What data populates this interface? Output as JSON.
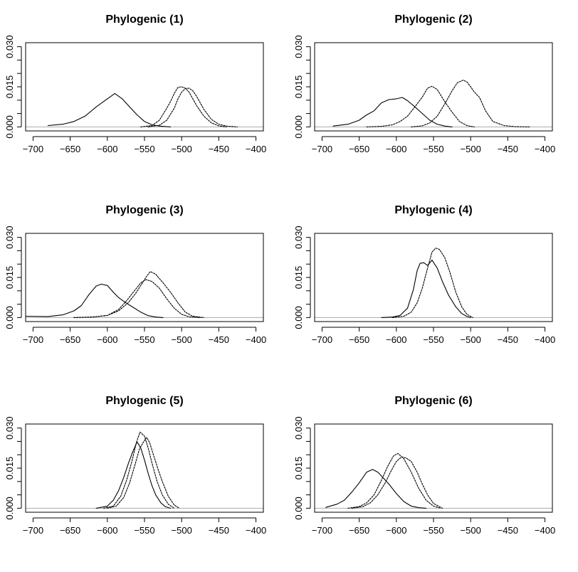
{
  "chart_data": [
    {
      "type": "line",
      "title": "Phylogenic (1)",
      "xlim": [
        -700,
        -400
      ],
      "ylim": [
        0,
        0.03
      ],
      "x_ticks": [
        "-700",
        "-650",
        "-600",
        "-550",
        "-500",
        "-450",
        "-400"
      ],
      "y_ticks": [
        "0.000",
        "0.015",
        "0.030"
      ],
      "y_minor_ticks": [
        0.005,
        0.01,
        0.02,
        0.025
      ],
      "series": [
        {
          "style": "solid",
          "x": [
            -680,
            -660,
            -645,
            -630,
            -615,
            -600,
            -590,
            -580,
            -570,
            -560,
            -550,
            -540,
            -530,
            -520,
            -515
          ],
          "y": [
            0.0005,
            0.001,
            0.002,
            0.004,
            0.0075,
            0.0105,
            0.0125,
            0.0105,
            0.0075,
            0.0045,
            0.002,
            0.0008,
            0.0003,
            0.0001,
            0.0
          ]
        },
        {
          "style": "dotted",
          "x": [
            -555,
            -540,
            -530,
            -520,
            -515,
            -510,
            -505,
            -500,
            -495,
            -490,
            -480,
            -470,
            -460,
            -450,
            -440
          ],
          "y": [
            0.0,
            0.0005,
            0.0025,
            0.007,
            0.0095,
            0.0125,
            0.0148,
            0.015,
            0.0145,
            0.013,
            0.008,
            0.004,
            0.0015,
            0.0004,
            0.0
          ]
        },
        {
          "style": "dotted",
          "x": [
            -545,
            -530,
            -520,
            -510,
            -505,
            -500,
            -495,
            -490,
            -485,
            -480,
            -470,
            -460,
            -450,
            -440,
            -425
          ],
          "y": [
            0.0,
            0.0006,
            0.0025,
            0.007,
            0.0105,
            0.013,
            0.0143,
            0.0145,
            0.0135,
            0.0115,
            0.0065,
            0.0028,
            0.001,
            0.0003,
            0.0
          ]
        }
      ]
    },
    {
      "type": "line",
      "title": "Phylogenic (2)",
      "xlim": [
        -700,
        -400
      ],
      "ylim": [
        0,
        0.03
      ],
      "x_ticks": [
        "-700",
        "-650",
        "-600",
        "-550",
        "-500",
        "-450",
        "-400"
      ],
      "y_ticks": [
        "0.000",
        "0.015",
        "0.030"
      ],
      "y_minor_ticks": [
        0.005,
        0.01,
        0.02,
        0.025
      ],
      "series": [
        {
          "style": "solid",
          "x": [
            -685,
            -665,
            -650,
            -640,
            -630,
            -620,
            -610,
            -600,
            -592,
            -585,
            -575,
            -565,
            -555,
            -545,
            -535,
            -525
          ],
          "y": [
            0.0003,
            0.001,
            0.0025,
            0.0045,
            0.006,
            0.009,
            0.0102,
            0.0105,
            0.011,
            0.0098,
            0.0075,
            0.005,
            0.0025,
            0.001,
            0.0003,
            0.0
          ]
        },
        {
          "style": "dotted",
          "x": [
            -640,
            -620,
            -605,
            -595,
            -585,
            -575,
            -565,
            -558,
            -552,
            -545,
            -535,
            -525,
            -515,
            -505,
            -495
          ],
          "y": [
            0.0,
            0.0002,
            0.0008,
            0.002,
            0.004,
            0.0075,
            0.0112,
            0.0145,
            0.0152,
            0.014,
            0.0095,
            0.0055,
            0.002,
            0.0005,
            0.0
          ]
        },
        {
          "style": "dotted",
          "x": [
            -580,
            -565,
            -555,
            -545,
            -535,
            -525,
            -518,
            -510,
            -505,
            -500,
            -495,
            -488,
            -480,
            -470,
            -455,
            -440,
            -420
          ],
          "y": [
            0.0,
            0.0004,
            0.0015,
            0.004,
            0.0085,
            0.0135,
            0.0165,
            0.0175,
            0.0168,
            0.015,
            0.013,
            0.011,
            0.006,
            0.002,
            0.0005,
            0.0001,
            0.0
          ]
        }
      ]
    },
    {
      "type": "line",
      "title": "Phylogenic (3)",
      "xlim": [
        -700,
        -400
      ],
      "ylim": [
        0,
        0.03
      ],
      "x_ticks": [
        "-700",
        "-650",
        "-600",
        "-550",
        "-500",
        "-450",
        "-400"
      ],
      "y_ticks": [
        "0.000",
        "0.015",
        "0.030"
      ],
      "y_minor_ticks": [
        0.005,
        0.01,
        0.02,
        0.025
      ],
      "series": [
        {
          "style": "solid",
          "x": [
            -710,
            -680,
            -660,
            -645,
            -635,
            -625,
            -615,
            -608,
            -600,
            -592,
            -585,
            -575,
            -565,
            -555,
            -545,
            -535,
            -525
          ],
          "y": [
            0.0005,
            0.0004,
            0.001,
            0.0025,
            0.0045,
            0.0085,
            0.0118,
            0.0125,
            0.012,
            0.0095,
            0.0075,
            0.0055,
            0.0038,
            0.002,
            0.0007,
            0.0002,
            0.0
          ]
        },
        {
          "style": "dotted",
          "x": [
            -645,
            -620,
            -600,
            -585,
            -575,
            -565,
            -555,
            -548,
            -540,
            -530,
            -520,
            -510,
            -500,
            -490,
            -475
          ],
          "y": [
            0.0,
            0.0002,
            0.0008,
            0.003,
            0.006,
            0.0095,
            0.013,
            0.0142,
            0.0135,
            0.011,
            0.007,
            0.0035,
            0.0012,
            0.0003,
            0.0
          ]
        },
        {
          "style": "dotted",
          "x": [
            -645,
            -620,
            -600,
            -585,
            -572,
            -562,
            -555,
            -547,
            -542,
            -535,
            -525,
            -515,
            -505,
            -495,
            -485,
            -470
          ],
          "y": [
            0.0,
            0.0002,
            0.0008,
            0.0025,
            0.0055,
            0.009,
            0.012,
            0.0155,
            0.0172,
            0.0162,
            0.013,
            0.0095,
            0.0055,
            0.002,
            0.0005,
            0.0
          ]
        }
      ]
    },
    {
      "type": "line",
      "title": "Phylogenic (4)",
      "xlim": [
        -700,
        -400
      ],
      "ylim": [
        0,
        0.03
      ],
      "x_ticks": [
        "-700",
        "-650",
        "-600",
        "-550",
        "-500",
        "-450",
        "-400"
      ],
      "y_ticks": [
        "0.000",
        "0.015",
        "0.030"
      ],
      "y_minor_ticks": [
        0.005,
        0.01,
        0.02,
        0.025
      ],
      "series": [
        {
          "style": "solid",
          "x": [
            -620,
            -605,
            -595,
            -585,
            -577,
            -572,
            -568,
            -563,
            -558,
            -552,
            -545,
            -538,
            -530,
            -520,
            -512,
            -505,
            -500
          ],
          "y": [
            0.0,
            0.0002,
            0.0008,
            0.0035,
            0.0105,
            0.0175,
            0.0203,
            0.0205,
            0.0195,
            0.0215,
            0.0185,
            0.0135,
            0.0085,
            0.004,
            0.0015,
            0.0004,
            0.0
          ]
        },
        {
          "style": "dotted",
          "x": [
            -605,
            -590,
            -580,
            -572,
            -565,
            -558,
            -552,
            -547,
            -542,
            -535,
            -528,
            -520,
            -512,
            -505,
            -497
          ],
          "y": [
            0.0,
            0.0005,
            0.002,
            0.0055,
            0.011,
            0.0185,
            0.0245,
            0.026,
            0.0255,
            0.0225,
            0.017,
            0.0095,
            0.004,
            0.0012,
            0.0
          ]
        }
      ]
    },
    {
      "type": "line",
      "title": "Phylogenic (5)",
      "xlim": [
        -700,
        -400
      ],
      "ylim": [
        0,
        0.03
      ],
      "x_ticks": [
        "-700",
        "-650",
        "-600",
        "-550",
        "-500",
        "-450",
        "-400"
      ],
      "y_ticks": [
        "0.000",
        "0.015",
        "0.030"
      ],
      "y_minor_ticks": [
        0.005,
        0.01,
        0.02,
        0.025
      ],
      "series": [
        {
          "style": "solid",
          "x": [
            -615,
            -600,
            -592,
            -585,
            -578,
            -572,
            -566,
            -560,
            -555,
            -550,
            -545,
            -540,
            -535,
            -528,
            -522,
            -515
          ],
          "y": [
            0.0,
            0.0008,
            0.003,
            0.0065,
            0.0115,
            0.0165,
            0.021,
            0.0248,
            0.0225,
            0.018,
            0.013,
            0.0085,
            0.005,
            0.002,
            0.0006,
            0.0
          ]
        },
        {
          "style": "dotted",
          "x": [
            -605,
            -592,
            -582,
            -574,
            -567,
            -561,
            -556,
            -550,
            -545,
            -540,
            -533,
            -526,
            -518,
            -510
          ],
          "y": [
            0.0,
            0.0008,
            0.0045,
            0.0105,
            0.0175,
            0.0245,
            0.0285,
            0.027,
            0.0225,
            0.017,
            0.01,
            0.005,
            0.0015,
            0.0
          ]
        },
        {
          "style": "dotted",
          "x": [
            -600,
            -588,
            -578,
            -570,
            -563,
            -557,
            -552,
            -547,
            -543,
            -538,
            -532,
            -526,
            -518,
            -510,
            -503
          ],
          "y": [
            0.0,
            0.0008,
            0.004,
            0.0095,
            0.016,
            0.022,
            0.0245,
            0.0265,
            0.0245,
            0.02,
            0.0148,
            0.01,
            0.0045,
            0.0012,
            0.0
          ]
        }
      ]
    },
    {
      "type": "line",
      "title": "Phylogenic (6)",
      "xlim": [
        -700,
        -400
      ],
      "ylim": [
        0,
        0.03
      ],
      "x_ticks": [
        "-700",
        "-650",
        "-600",
        "-550",
        "-500",
        "-450",
        "-400"
      ],
      "y_ticks": [
        "0.000",
        "0.015",
        "0.030"
      ],
      "y_minor_ticks": [
        0.005,
        0.01,
        0.02,
        0.025
      ],
      "series": [
        {
          "style": "solid",
          "x": [
            -695,
            -680,
            -670,
            -660,
            -650,
            -640,
            -632,
            -625,
            -618,
            -610,
            -600,
            -590,
            -580,
            -570,
            -560
          ],
          "y": [
            0.0003,
            0.0015,
            0.003,
            0.006,
            0.0095,
            0.0135,
            0.0145,
            0.0135,
            0.0115,
            0.009,
            0.0055,
            0.0025,
            0.0008,
            0.0002,
            0.0
          ]
        },
        {
          "style": "dotted",
          "x": [
            -665,
            -650,
            -640,
            -630,
            -620,
            -612,
            -604,
            -598,
            -590,
            -580,
            -570,
            -560,
            -550,
            -540
          ],
          "y": [
            0.0,
            0.0006,
            0.002,
            0.005,
            0.0105,
            0.0155,
            0.0195,
            0.0205,
            0.0185,
            0.0135,
            0.0075,
            0.003,
            0.0008,
            0.0
          ]
        },
        {
          "style": "dotted",
          "x": [
            -660,
            -645,
            -635,
            -625,
            -615,
            -607,
            -600,
            -593,
            -587,
            -580,
            -572,
            -565,
            -558,
            -550,
            -538
          ],
          "y": [
            0.0,
            0.0006,
            0.002,
            0.005,
            0.0095,
            0.014,
            0.0175,
            0.0192,
            0.0188,
            0.0175,
            0.0135,
            0.009,
            0.005,
            0.0018,
            0.0
          ]
        }
      ]
    }
  ]
}
